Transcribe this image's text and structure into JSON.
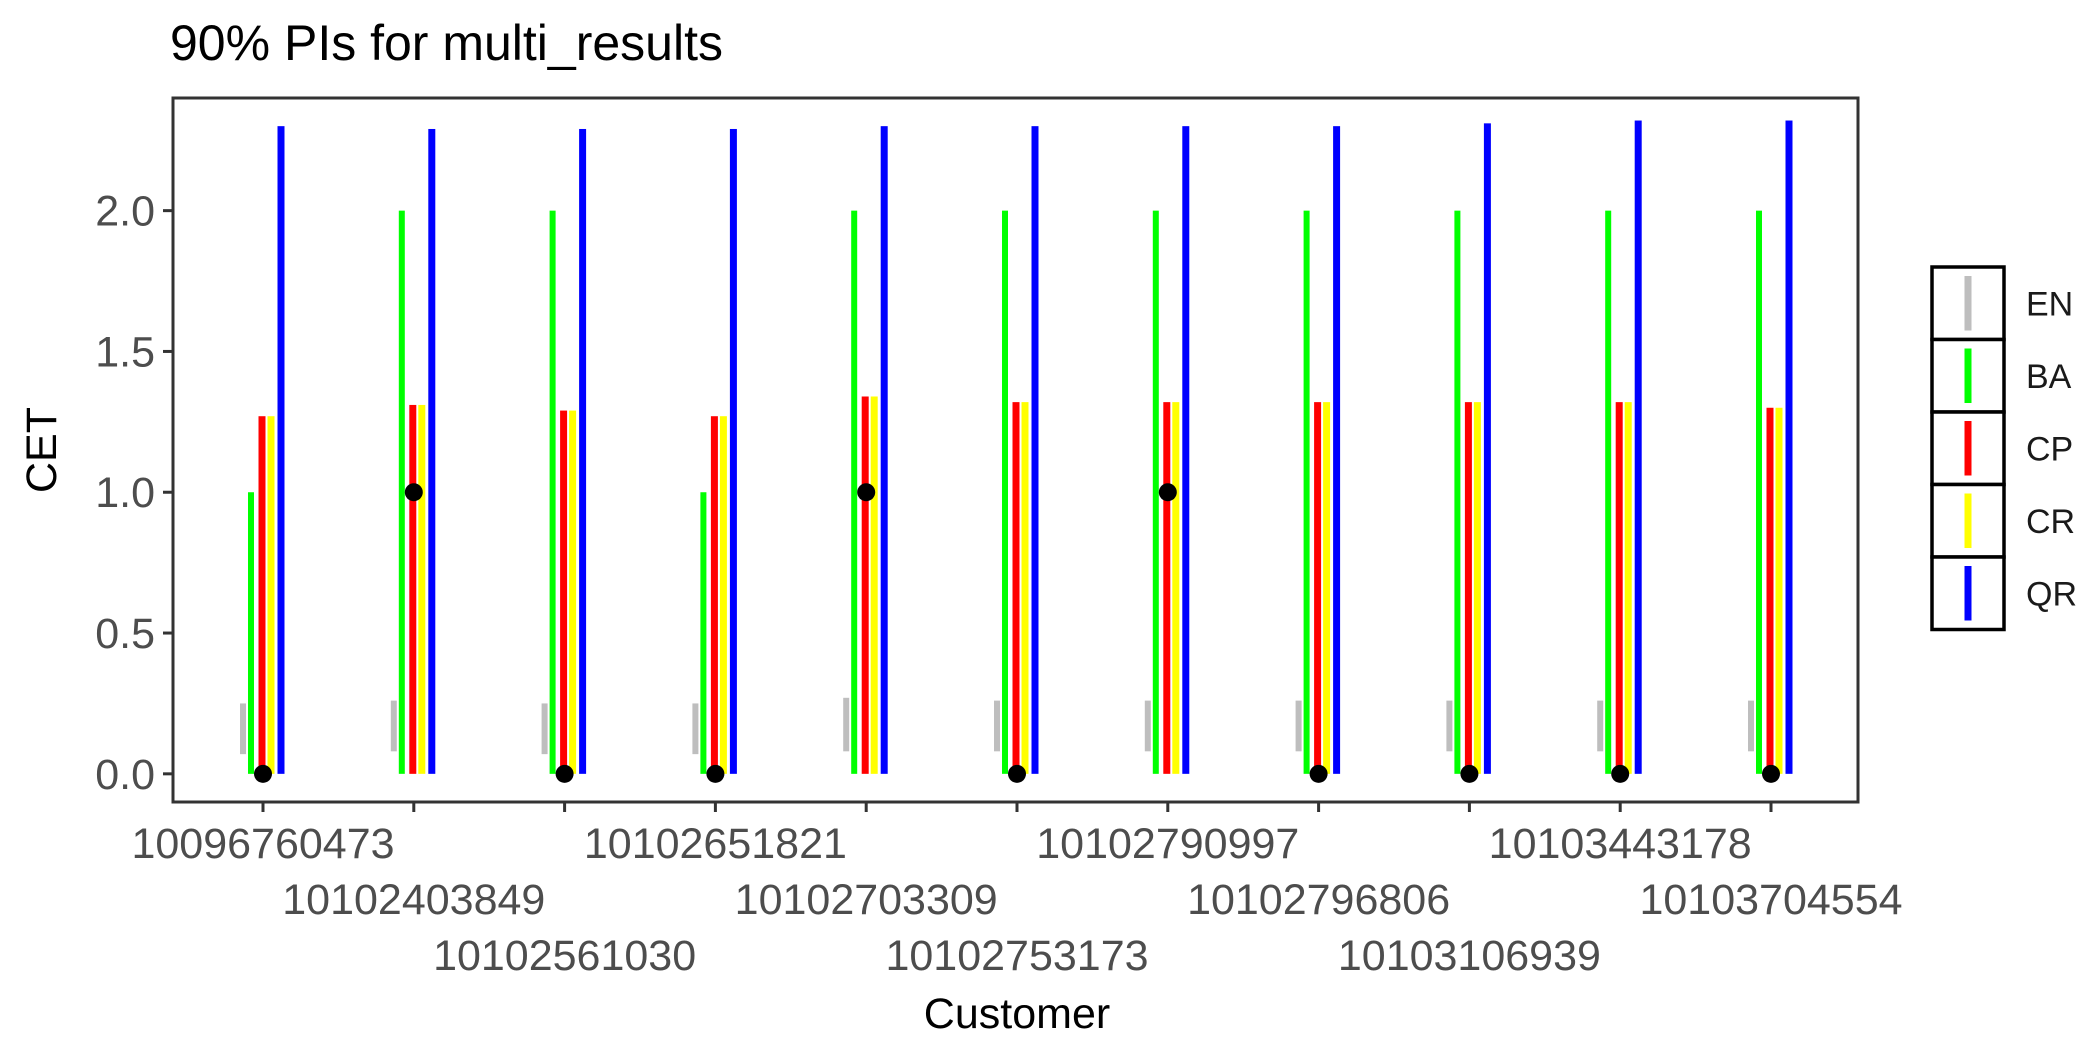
{
  "chart_data": {
    "type": "errorbar",
    "title": "90% PIs for multi_results",
    "xlabel": "Customer",
    "ylabel": "CET",
    "ylim": [
      -0.1,
      2.4
    ],
    "y_ticks": [
      0.0,
      0.5,
      1.0,
      1.5,
      2.0
    ],
    "y_tick_labels": [
      "0.0",
      "0.5",
      "1.0",
      "1.5",
      "2.0"
    ],
    "grid": false,
    "legend_position": "right",
    "categories": [
      "10096760473",
      "10102403849",
      "10102561030",
      "10102651821",
      "10102703309",
      "10102753173",
      "10102790997",
      "10102796806",
      "10103106939",
      "10103443178",
      "10103704554"
    ],
    "series": [
      {
        "name": "EN",
        "color": "#bebebe",
        "lower": [
          0.07,
          0.08,
          0.07,
          0.07,
          0.08,
          0.08,
          0.08,
          0.08,
          0.08,
          0.08,
          0.08
        ],
        "upper": [
          0.25,
          0.26,
          0.25,
          0.25,
          0.27,
          0.26,
          0.26,
          0.26,
          0.26,
          0.26,
          0.26
        ]
      },
      {
        "name": "BA",
        "color": "#00ff00",
        "lower": [
          0,
          0,
          0,
          0,
          0,
          0,
          0,
          0,
          0,
          0,
          0
        ],
        "upper": [
          1,
          2,
          2,
          1,
          2,
          2,
          2,
          2,
          2,
          2,
          2
        ]
      },
      {
        "name": "CP",
        "color": "#ff0000",
        "lower": [
          0,
          0,
          0,
          0,
          0,
          0,
          0,
          0,
          0,
          0,
          0
        ],
        "upper": [
          1.27,
          1.31,
          1.29,
          1.27,
          1.34,
          1.32,
          1.32,
          1.32,
          1.32,
          1.32,
          1.3
        ]
      },
      {
        "name": "CR",
        "color": "#ffff00",
        "lower": [
          0,
          0,
          0,
          0,
          0,
          0,
          0,
          0,
          0,
          0,
          0
        ],
        "upper": [
          1.27,
          1.31,
          1.29,
          1.27,
          1.34,
          1.32,
          1.32,
          1.32,
          1.32,
          1.32,
          1.3
        ]
      },
      {
        "name": "QR",
        "color": "#0000ff",
        "lower": [
          0,
          0,
          0,
          0,
          0,
          0,
          0,
          0,
          0,
          0,
          0
        ],
        "upper": [
          2.3,
          2.29,
          2.29,
          2.29,
          2.3,
          2.3,
          2.3,
          2.3,
          2.31,
          2.32,
          2.32
        ]
      }
    ],
    "points": [
      0,
      1,
      0,
      0,
      1,
      0,
      1,
      0,
      0,
      0,
      0
    ]
  }
}
